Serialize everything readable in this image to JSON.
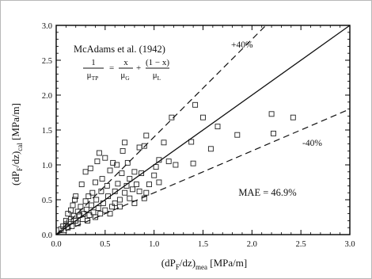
{
  "chart_data": {
    "type": "scatter",
    "title": "",
    "xlabel": {
      "main": "(dP",
      "sub1": "F",
      "mid": "/dz)",
      "sub2": "mea",
      "unit": " [MPa/m]"
    },
    "ylabel": {
      "main": "(dP",
      "sub1": "F",
      "mid": "/dz)",
      "sub2": "cal",
      "unit": " [MPa/m]"
    },
    "xlim": [
      0.0,
      3.0
    ],
    "ylim": [
      0.0,
      3.0
    ],
    "xticks": [
      "0.0",
      "0.5",
      "1.0",
      "1.5",
      "2.0",
      "2.5",
      "3.0"
    ],
    "yticks": [
      "0.0",
      "0.5",
      "1.0",
      "1.5",
      "2.0",
      "2.5",
      "3.0"
    ],
    "grid": false,
    "reference_lines": [
      {
        "label": "",
        "slope": 1.0,
        "style": "solid"
      },
      {
        "label": "+40%",
        "slope": 1.4,
        "style": "dashed"
      },
      {
        "label": "-40%",
        "slope": 0.6,
        "style": "dashed"
      }
    ],
    "annotations": {
      "model_name": "McAdams et al. (1942)",
      "eq_lhs_num": "1",
      "eq_lhs_den": "μ",
      "eq_lhs_den_sub": "TP",
      "eq_eq": "=",
      "eq_t1_num": "x",
      "eq_t1_den": "μ",
      "eq_t1_den_sub": "G",
      "eq_plus": "+",
      "eq_t2_num": "(1 − x)",
      "eq_t2_den": "μ",
      "eq_t2_den_sub": "L",
      "mae": "MAE = 46.9%"
    },
    "series": [
      {
        "marker": "open-square",
        "points": [
          [
            0.05,
            0.08
          ],
          [
            0.07,
            0.12
          ],
          [
            0.08,
            0.06
          ],
          [
            0.1,
            0.15
          ],
          [
            0.1,
            0.2
          ],
          [
            0.12,
            0.1
          ],
          [
            0.12,
            0.3
          ],
          [
            0.13,
            0.18
          ],
          [
            0.15,
            0.22
          ],
          [
            0.15,
            0.35
          ],
          [
            0.16,
            0.12
          ],
          [
            0.17,
            0.42
          ],
          [
            0.18,
            0.27
          ],
          [
            0.19,
            0.5
          ],
          [
            0.2,
            0.2
          ],
          [
            0.2,
            0.55
          ],
          [
            0.22,
            0.33
          ],
          [
            0.22,
            0.16
          ],
          [
            0.24,
            0.28
          ],
          [
            0.25,
            0.4
          ],
          [
            0.26,
            0.72
          ],
          [
            0.27,
            0.22
          ],
          [
            0.28,
            0.3
          ],
          [
            0.3,
            0.48
          ],
          [
            0.3,
            0.9
          ],
          [
            0.31,
            0.36
          ],
          [
            0.32,
            0.2
          ],
          [
            0.33,
            0.55
          ],
          [
            0.34,
            0.28
          ],
          [
            0.35,
            0.95
          ],
          [
            0.36,
            0.42
          ],
          [
            0.37,
            0.6
          ],
          [
            0.38,
            0.32
          ],
          [
            0.4,
            0.75
          ],
          [
            0.4,
            0.25
          ],
          [
            0.41,
            0.5
          ],
          [
            0.42,
            1.05
          ],
          [
            0.43,
            0.38
          ],
          [
            0.44,
            1.17
          ],
          [
            0.45,
            0.3
          ],
          [
            0.46,
            0.62
          ],
          [
            0.47,
            0.8
          ],
          [
            0.48,
            0.45
          ],
          [
            0.5,
            1.1
          ],
          [
            0.5,
            0.35
          ],
          [
            0.52,
            0.7
          ],
          [
            0.53,
            0.55
          ],
          [
            0.55,
            0.3
          ],
          [
            0.55,
            0.92
          ],
          [
            0.57,
            0.4
          ],
          [
            0.58,
            1.03
          ],
          [
            0.6,
            0.62
          ],
          [
            0.6,
            0.45
          ],
          [
            0.62,
            1.0
          ],
          [
            0.63,
            0.73
          ],
          [
            0.65,
            0.5
          ],
          [
            0.65,
            0.4
          ],
          [
            0.67,
            0.88
          ],
          [
            0.68,
            1.2
          ],
          [
            0.7,
            0.6
          ],
          [
            0.7,
            1.32
          ],
          [
            0.72,
            0.7
          ],
          [
            0.73,
            1.03
          ],
          [
            0.75,
            0.52
          ],
          [
            0.75,
            0.8
          ],
          [
            0.78,
            0.65
          ],
          [
            0.8,
            0.9
          ],
          [
            0.8,
            0.45
          ],
          [
            0.82,
            0.72
          ],
          [
            0.85,
            1.25
          ],
          [
            0.85,
            0.62
          ],
          [
            0.87,
            0.88
          ],
          [
            0.9,
            1.27
          ],
          [
            0.9,
            0.52
          ],
          [
            0.92,
            0.6
          ],
          [
            0.92,
            1.42
          ],
          [
            0.95,
            0.72
          ],
          [
            1.0,
            0.85
          ],
          [
            1.02,
            0.97
          ],
          [
            1.05,
            0.75
          ],
          [
            1.05,
            1.07
          ],
          [
            1.1,
            1.32
          ],
          [
            1.15,
            1.05
          ],
          [
            1.18,
            1.68
          ],
          [
            1.22,
            1.0
          ],
          [
            1.38,
            1.33
          ],
          [
            1.4,
            1.02
          ],
          [
            1.42,
            1.86
          ],
          [
            1.5,
            1.68
          ],
          [
            1.58,
            1.23
          ],
          [
            1.65,
            1.55
          ],
          [
            1.85,
            1.43
          ],
          [
            2.2,
            1.73
          ],
          [
            2.22,
            1.45
          ],
          [
            2.42,
            1.68
          ]
        ]
      }
    ]
  }
}
